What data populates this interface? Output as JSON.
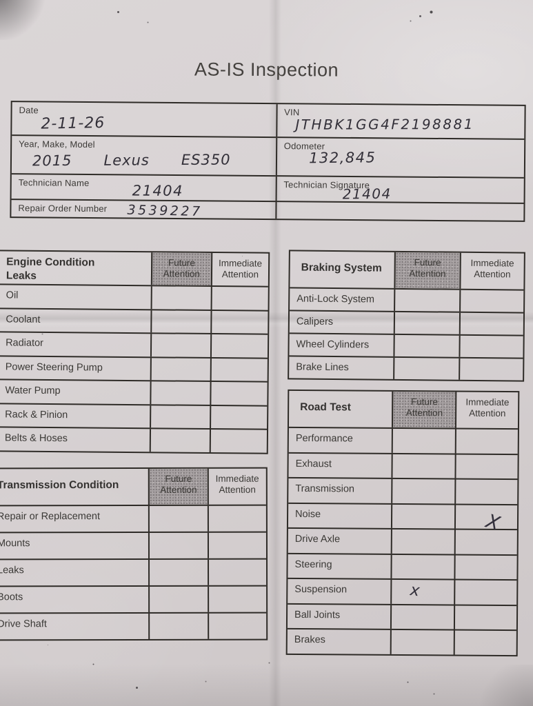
{
  "colors": {
    "paper": "#d6d1d2",
    "ink_lines": "#2e2b27",
    "printed_text": "#3a3835",
    "shaded_header": "#a7a1a2",
    "handwriting": "#322f38"
  },
  "title": "AS-IS Inspection",
  "info": {
    "date": {
      "label": "Date",
      "value": "2-11-26"
    },
    "vin": {
      "label": "VIN",
      "value": "JTHBK1GG4F2198881"
    },
    "year_make_model": {
      "label": "Year, Make, Model",
      "value": "2015      Lexus      ES350"
    },
    "odometer": {
      "label": "Odometer",
      "value": "132,845"
    },
    "technician_name": {
      "label": "Technician Name",
      "value": "21404"
    },
    "technician_signature": {
      "label": "Technician Signature",
      "value": "21404"
    },
    "repair_order": {
      "label": "Repair Order Number",
      "value": "3539227"
    }
  },
  "column_headers": {
    "future": "Future Attention",
    "immediate": "Immediate Attention"
  },
  "sections": {
    "engine": {
      "title": "Engine Condition\nLeaks",
      "rows": [
        {
          "label": "Oil",
          "future": "",
          "immediate": ""
        },
        {
          "label": "Coolant",
          "future": "",
          "immediate": ""
        },
        {
          "label": "Radiator",
          "future": "",
          "immediate": ""
        },
        {
          "label": "Power Steering Pump",
          "future": "",
          "immediate": ""
        },
        {
          "label": "Water Pump",
          "future": "",
          "immediate": ""
        },
        {
          "label": "Rack & Pinion",
          "future": "",
          "immediate": ""
        },
        {
          "label": "Belts & Hoses",
          "future": "",
          "immediate": ""
        }
      ]
    },
    "transmission": {
      "title": "Transmission Condition",
      "rows": [
        {
          "label": "Repair or Replacement",
          "future": "",
          "immediate": ""
        },
        {
          "label": "Mounts",
          "future": "",
          "immediate": ""
        },
        {
          "label": "Leaks",
          "future": "",
          "immediate": ""
        },
        {
          "label": "Boots",
          "future": "",
          "immediate": ""
        },
        {
          "label": "Drive Shaft",
          "future": "",
          "immediate": ""
        }
      ]
    },
    "braking": {
      "title": "Braking System",
      "rows": [
        {
          "label": "Anti-Lock System",
          "future": "",
          "immediate": ""
        },
        {
          "label": "Calipers",
          "future": "",
          "immediate": ""
        },
        {
          "label": "Wheel Cylinders",
          "future": "",
          "immediate": ""
        },
        {
          "label": "Brake Lines",
          "future": "",
          "immediate": ""
        }
      ]
    },
    "road_test": {
      "title": "Road Test",
      "rows": [
        {
          "label": "Performance",
          "future": "",
          "immediate": ""
        },
        {
          "label": "Exhaust",
          "future": "",
          "immediate": ""
        },
        {
          "label": "Transmission",
          "future": "",
          "immediate": ""
        },
        {
          "label": "Noise",
          "future": "",
          "immediate": "X"
        },
        {
          "label": "Drive Axle",
          "future": "",
          "immediate": ""
        },
        {
          "label": "Steering",
          "future": "",
          "immediate": ""
        },
        {
          "label": "Suspension",
          "future": "x",
          "immediate": ""
        },
        {
          "label": "Ball Joints",
          "future": "",
          "immediate": ""
        },
        {
          "label": "Brakes",
          "future": "",
          "immediate": ""
        }
      ]
    }
  }
}
